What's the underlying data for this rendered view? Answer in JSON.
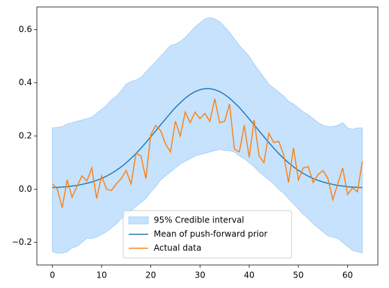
{
  "chart_data": {
    "type": "line",
    "x": [
      0,
      1,
      2,
      3,
      4,
      5,
      6,
      7,
      8,
      9,
      10,
      11,
      12,
      13,
      14,
      15,
      16,
      17,
      18,
      19,
      20,
      21,
      22,
      23,
      24,
      25,
      26,
      27,
      28,
      29,
      30,
      31,
      32,
      33,
      34,
      35,
      36,
      37,
      38,
      39,
      40,
      41,
      42,
      43,
      44,
      45,
      46,
      47,
      48,
      49,
      50,
      51,
      52,
      53,
      54,
      55,
      56,
      57,
      58,
      59,
      60,
      61,
      62,
      63
    ],
    "band": {
      "name": "95% Credible interval",
      "color": "#c6e2fd",
      "edge_color": "#a8d1f7",
      "upper": [
        0.23,
        0.232,
        0.235,
        0.245,
        0.25,
        0.255,
        0.26,
        0.265,
        0.27,
        0.285,
        0.3,
        0.315,
        0.335,
        0.35,
        0.37,
        0.395,
        0.405,
        0.41,
        0.42,
        0.44,
        0.46,
        0.48,
        0.5,
        0.52,
        0.54,
        0.545,
        0.555,
        0.57,
        0.59,
        0.61,
        0.625,
        0.64,
        0.645,
        0.64,
        0.63,
        0.61,
        0.59,
        0.565,
        0.54,
        0.52,
        0.5,
        0.47,
        0.445,
        0.42,
        0.395,
        0.38,
        0.365,
        0.35,
        0.33,
        0.32,
        0.305,
        0.29,
        0.28,
        0.265,
        0.25,
        0.24,
        0.235,
        0.235,
        0.24,
        0.25,
        0.23,
        0.225,
        0.23,
        0.23
      ],
      "lower": [
        -0.235,
        -0.24,
        -0.24,
        -0.235,
        -0.22,
        -0.215,
        -0.2,
        -0.185,
        -0.185,
        -0.18,
        -0.17,
        -0.16,
        -0.145,
        -0.13,
        -0.11,
        -0.095,
        -0.08,
        -0.065,
        -0.05,
        -0.035,
        -0.01,
        0.01,
        0.035,
        0.05,
        0.065,
        0.08,
        0.095,
        0.105,
        0.115,
        0.125,
        0.13,
        0.135,
        0.14,
        0.145,
        0.15,
        0.145,
        0.145,
        0.14,
        0.125,
        0.115,
        0.1,
        0.085,
        0.065,
        0.05,
        0.035,
        0.02,
        0.0,
        -0.015,
        -0.035,
        -0.055,
        -0.075,
        -0.095,
        -0.11,
        -0.13,
        -0.145,
        -0.16,
        -0.175,
        -0.18,
        -0.185,
        -0.2,
        -0.215,
        -0.23,
        -0.235,
        -0.24
      ]
    },
    "series": [
      {
        "name": "Mean of push-forward prior",
        "color": "#1f77b4",
        "values": [
          0.006,
          0.007,
          0.008,
          0.009,
          0.012,
          0.014,
          0.018,
          0.022,
          0.027,
          0.033,
          0.04,
          0.049,
          0.059,
          0.071,
          0.084,
          0.099,
          0.116,
          0.134,
          0.154,
          0.175,
          0.197,
          0.219,
          0.242,
          0.264,
          0.286,
          0.307,
          0.325,
          0.342,
          0.356,
          0.367,
          0.374,
          0.378,
          0.378,
          0.374,
          0.367,
          0.356,
          0.342,
          0.325,
          0.307,
          0.286,
          0.264,
          0.242,
          0.219,
          0.197,
          0.175,
          0.154,
          0.134,
          0.116,
          0.099,
          0.084,
          0.071,
          0.059,
          0.049,
          0.04,
          0.033,
          0.027,
          0.022,
          0.018,
          0.014,
          0.012,
          0.009,
          0.008,
          0.007,
          0.006
        ]
      },
      {
        "name": "Actual data",
        "color": "#ff7f0e",
        "values": [
          0.02,
          0.0,
          -0.07,
          0.035,
          -0.03,
          0.01,
          0.05,
          0.03,
          0.08,
          -0.035,
          0.05,
          0.0,
          -0.005,
          0.02,
          0.04,
          0.07,
          0.02,
          0.135,
          0.125,
          0.04,
          0.205,
          0.24,
          0.22,
          0.17,
          0.14,
          0.255,
          0.2,
          0.29,
          0.25,
          0.29,
          0.265,
          0.285,
          0.255,
          0.34,
          0.25,
          0.255,
          0.32,
          0.15,
          0.14,
          0.24,
          0.12,
          0.26,
          0.125,
          0.1,
          0.21,
          0.175,
          0.18,
          0.13,
          0.025,
          0.155,
          0.035,
          0.08,
          0.085,
          0.025,
          0.055,
          0.07,
          0.04,
          -0.04,
          0.02,
          0.08,
          -0.02,
          0.005,
          -0.01,
          0.105
        ]
      }
    ],
    "xlim": [
      -3.15,
      66.15
    ],
    "ylim": [
      -0.285,
      0.685
    ],
    "xticks": [
      0,
      10,
      20,
      30,
      40,
      50,
      60
    ],
    "yticks": [
      {
        "value": -0.2,
        "label": "−0.2"
      },
      {
        "value": 0.0,
        "label": "0.0"
      },
      0.2,
      0.4,
      0.6
    ],
    "legend": "lower center"
  }
}
